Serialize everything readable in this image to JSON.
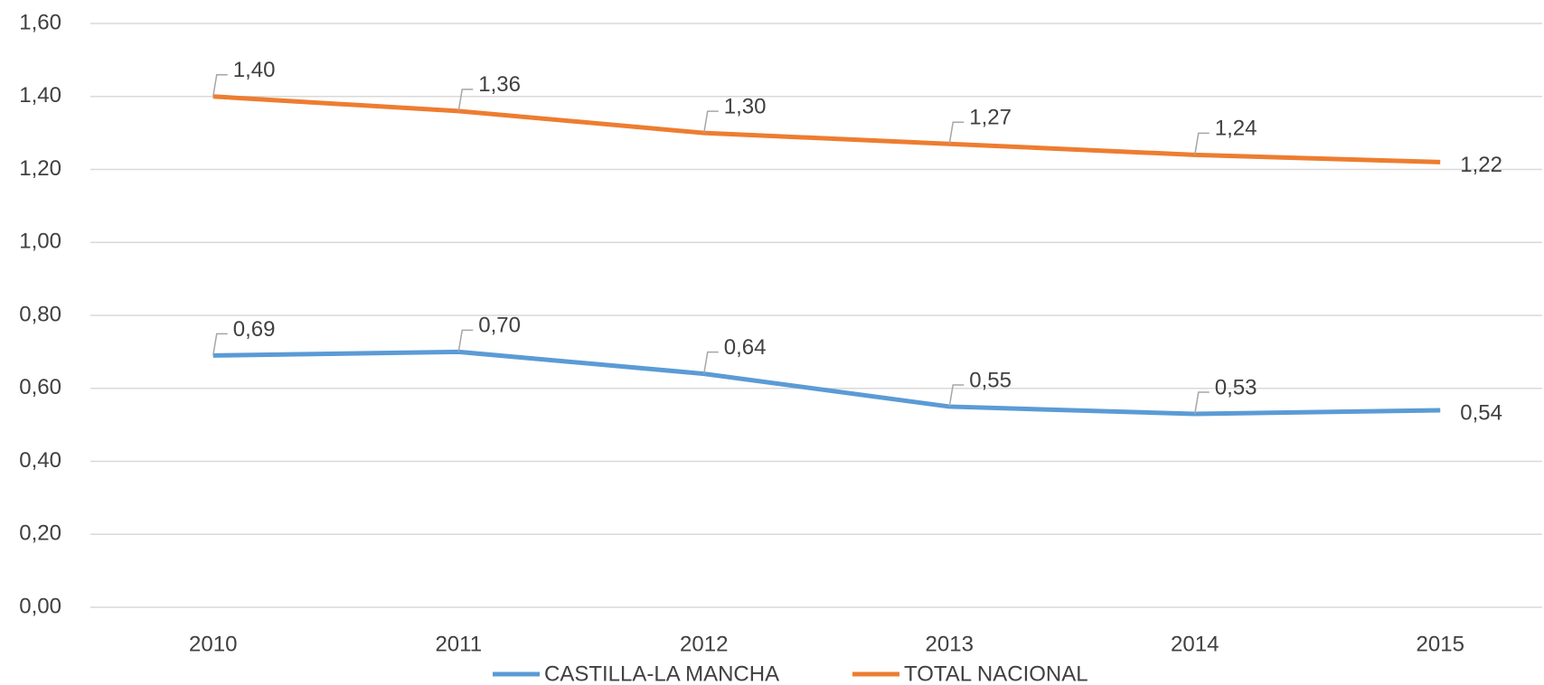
{
  "chart_data": {
    "type": "line",
    "categories": [
      "2010",
      "2011",
      "2012",
      "2013",
      "2014",
      "2015"
    ],
    "series": [
      {
        "name": "CASTILLA-LA MANCHA",
        "color": "#5b9bd5",
        "values": [
          0.69,
          0.7,
          0.64,
          0.55,
          0.53,
          0.54
        ],
        "value_labels": [
          "0,69",
          "0,70",
          "0,64",
          "0,55",
          "0,53",
          "0,54"
        ]
      },
      {
        "name": "TOTAL NACIONAL",
        "color": "#ed7d31",
        "values": [
          1.4,
          1.36,
          1.3,
          1.27,
          1.24,
          1.22
        ],
        "value_labels": [
          "1,40",
          "1,36",
          "1,30",
          "1,27",
          "1,24",
          "1,22"
        ]
      }
    ],
    "ylim": [
      0,
      1.6
    ],
    "yticks": [
      {
        "value": 0,
        "label": "0,00"
      },
      {
        "value": 0.2,
        "label": "0,20"
      },
      {
        "value": 0.4,
        "label": "0,40"
      },
      {
        "value": 0.6,
        "label": "0,60"
      },
      {
        "value": 0.8,
        "label": "0,80"
      },
      {
        "value": 1.0,
        "label": "1,00"
      },
      {
        "value": 1.2,
        "label": "1,20"
      },
      {
        "value": 1.4,
        "label": "1,40"
      },
      {
        "value": 1.6,
        "label": "1,60"
      }
    ],
    "grid": true,
    "legend": "bottom"
  }
}
